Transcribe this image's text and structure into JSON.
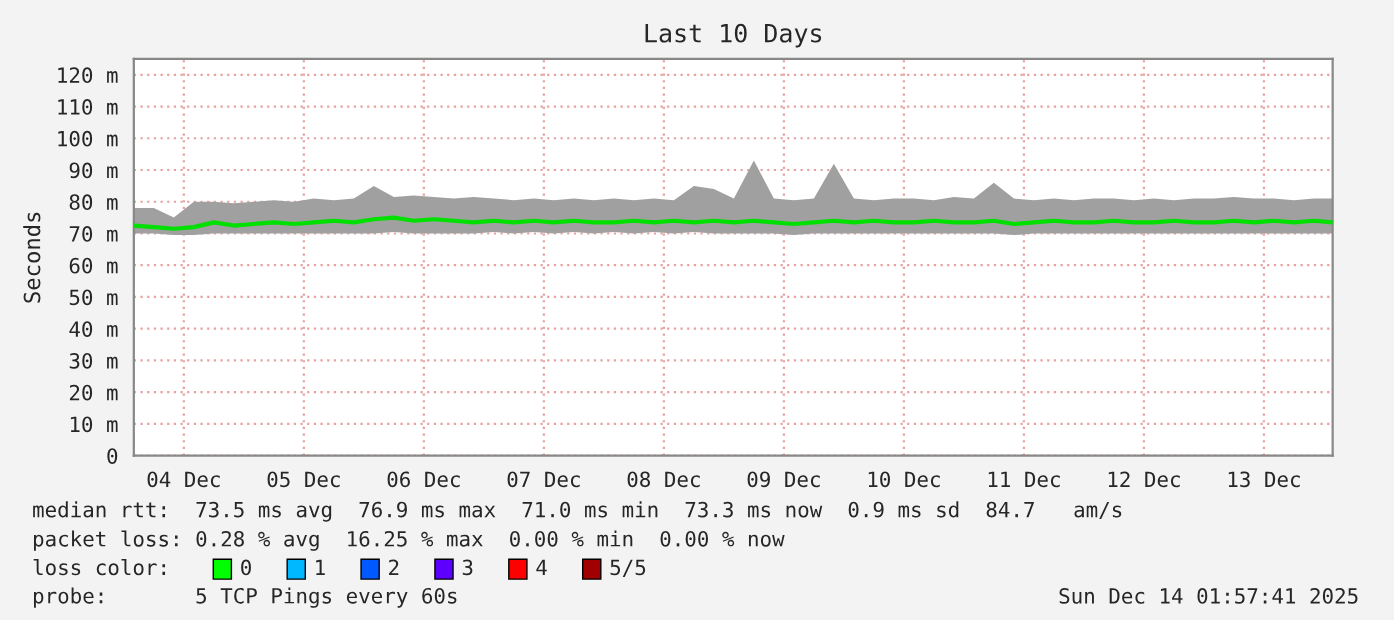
{
  "chart_data": {
    "type": "line",
    "title": "Last 10 Days",
    "ylabel": "Seconds",
    "x": [
      "2025-12-04T02:00",
      "2025-12-04T06:00",
      "2025-12-04T10:00",
      "2025-12-04T14:00",
      "2025-12-04T18:00",
      "2025-12-04T22:00",
      "2025-12-05T02:00",
      "2025-12-05T06:00",
      "2025-12-05T10:00",
      "2025-12-05T14:00",
      "2025-12-05T18:00",
      "2025-12-05T22:00",
      "2025-12-06T02:00",
      "2025-12-06T06:00",
      "2025-12-06T10:00",
      "2025-12-06T14:00",
      "2025-12-06T18:00",
      "2025-12-06T22:00",
      "2025-12-07T02:00",
      "2025-12-07T06:00",
      "2025-12-07T10:00",
      "2025-12-07T14:00",
      "2025-12-07T18:00",
      "2025-12-07T22:00",
      "2025-12-08T02:00",
      "2025-12-08T06:00",
      "2025-12-08T10:00",
      "2025-12-08T14:00",
      "2025-12-08T18:00",
      "2025-12-08T22:00",
      "2025-12-09T02:00",
      "2025-12-09T06:00",
      "2025-12-09T10:00",
      "2025-12-09T14:00",
      "2025-12-09T18:00",
      "2025-12-09T22:00",
      "2025-12-10T02:00",
      "2025-12-10T06:00",
      "2025-12-10T10:00",
      "2025-12-10T14:00",
      "2025-12-10T18:00",
      "2025-12-10T22:00",
      "2025-12-11T02:00",
      "2025-12-11T06:00",
      "2025-12-11T10:00",
      "2025-12-11T14:00",
      "2025-12-11T18:00",
      "2025-12-11T22:00",
      "2025-12-12T02:00",
      "2025-12-12T06:00",
      "2025-12-12T10:00",
      "2025-12-12T14:00",
      "2025-12-12T18:00",
      "2025-12-12T22:00",
      "2025-12-13T02:00",
      "2025-12-13T06:00",
      "2025-12-13T10:00",
      "2025-12-13T14:00",
      "2025-12-13T18:00",
      "2025-12-13T22:00",
      "2025-12-14T01:45"
    ],
    "series": [
      {
        "color": "#00e000",
        "values": [
          72.5,
          72,
          71.5,
          72,
          73.5,
          72.5,
          73,
          73.5,
          73,
          73.5,
          74,
          73.5,
          74.5,
          75,
          74,
          74.5,
          74,
          73.5,
          74,
          73.5,
          74,
          73.5,
          74,
          73.5,
          73.5,
          74,
          73.5,
          74,
          73.5,
          74,
          73.5,
          74,
          73.5,
          73,
          73.5,
          74,
          73.5,
          74,
          73.5,
          73.5,
          74,
          73.5,
          73.5,
          74,
          73,
          73.5,
          74,
          73.5,
          73.5,
          74,
          73.5,
          73.5,
          74,
          73.5,
          73.5,
          74,
          73.5,
          74,
          73.5,
          74,
          73.5
        ],
        "lower": [
          70,
          70,
          69.5,
          69.5,
          70,
          70,
          70,
          70,
          70,
          70,
          70,
          70,
          70,
          70.5,
          70,
          70,
          70,
          70,
          70.5,
          70,
          70.5,
          70,
          70.5,
          70,
          70.5,
          70,
          70.5,
          70,
          70.5,
          70,
          70,
          70,
          70,
          69.5,
          70,
          70,
          70,
          70,
          70,
          70,
          70,
          70,
          70,
          70,
          69.5,
          70,
          70,
          70,
          70,
          70,
          70,
          70,
          70,
          70,
          70,
          70,
          70,
          70,
          70,
          70,
          70
        ],
        "upper": [
          78,
          78,
          75,
          80,
          80,
          79.5,
          80,
          80.5,
          80,
          81,
          80.5,
          81,
          85,
          81.5,
          82,
          81.5,
          81,
          81.5,
          81,
          80.5,
          81,
          80.5,
          81,
          80.5,
          81,
          80.5,
          81,
          80.5,
          85,
          84,
          81,
          93,
          81,
          80.5,
          81,
          92,
          81,
          80.5,
          81,
          81,
          80.5,
          81.5,
          81,
          86,
          81,
          80.5,
          81,
          80.5,
          81,
          81,
          80.5,
          81,
          80.5,
          81,
          81,
          81.5,
          81,
          81,
          80.5,
          81,
          81
        ]
      }
    ],
    "ylim": [
      0,
      125
    ],
    "yticks": [
      {
        "value": 0,
        "label": "0"
      },
      {
        "value": 10,
        "label": "10 m"
      },
      {
        "value": 20,
        "label": "20 m"
      },
      {
        "value": 30,
        "label": "30 m"
      },
      {
        "value": 40,
        "label": "40 m"
      },
      {
        "value": 50,
        "label": "50 m"
      },
      {
        "value": 60,
        "label": "60 m"
      },
      {
        "value": 70,
        "label": "70 m"
      },
      {
        "value": 80,
        "label": "80 m"
      },
      {
        "value": 90,
        "label": "90 m"
      },
      {
        "value": 100,
        "label": "100 m"
      },
      {
        "value": 110,
        "label": "110 m"
      },
      {
        "value": 120,
        "label": "120 m"
      }
    ],
    "xlim": [
      "2025-12-04T02:00",
      "2025-12-14T01:45"
    ],
    "xticks": [
      {
        "value": "2025-12-04T12:00",
        "label": "04 Dec"
      },
      {
        "value": "2025-12-05T12:00",
        "label": "05 Dec"
      },
      {
        "value": "2025-12-06T12:00",
        "label": "06 Dec"
      },
      {
        "value": "2025-12-07T12:00",
        "label": "07 Dec"
      },
      {
        "value": "2025-12-08T12:00",
        "label": "08 Dec"
      },
      {
        "value": "2025-12-09T12:00",
        "label": "09 Dec"
      },
      {
        "value": "2025-12-10T12:00",
        "label": "10 Dec"
      },
      {
        "value": "2025-12-11T12:00",
        "label": "11 Dec"
      },
      {
        "value": "2025-12-12T12:00",
        "label": "12 Dec"
      },
      {
        "value": "2025-12-13T12:00",
        "label": "13 Dec"
      }
    ],
    "grid": true,
    "annotations": [
      "median rtt:  73.5 ms avg  76.9 ms max  71.0 ms min  73.3 ms now  0.9 ms sd  84.7   am/s",
      "packet loss: 0.28 % avg  16.25 % max  0.00 % min  0.00 % now",
      "loss color:",
      "0",
      "1",
      "2",
      "3",
      "4",
      "5/5",
      "probe:       5 TCP Pings every 60s",
      "Sun Dec 14 01:57:41 2025"
    ]
  }
}
